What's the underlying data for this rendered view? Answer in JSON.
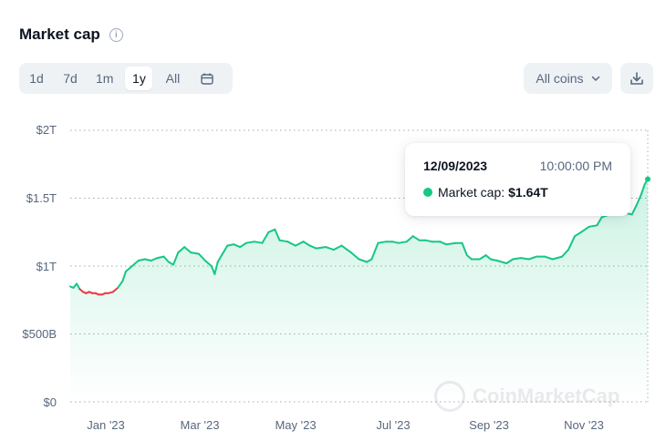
{
  "header": {
    "title": "Market cap",
    "info_icon": "i"
  },
  "range_tabs": [
    {
      "label": "1d",
      "active": false
    },
    {
      "label": "7d",
      "active": false
    },
    {
      "label": "1m",
      "active": false
    },
    {
      "label": "1y",
      "active": true
    },
    {
      "label": "All",
      "active": false
    }
  ],
  "coins_select": {
    "value": "All coins"
  },
  "icons": {
    "calendar": "calendar-icon",
    "chevron": "chevron-down-icon",
    "download": "download-icon",
    "info": "info-icon"
  },
  "colors": {
    "up": "#16c784",
    "down": "#ea3943",
    "grid": "#58667e",
    "text": "#58667e"
  },
  "tooltip": {
    "date": "12/09/2023",
    "time": "10:00:00 PM",
    "label": "Market cap:",
    "value": "$1.64T"
  },
  "watermark": {
    "text": "CoinMarketCap"
  },
  "chart_data": {
    "type": "line",
    "y_ticks": [
      "$2T",
      "$1.5T",
      "$1T",
      "$500B",
      "$0"
    ],
    "y_tick_values": [
      2.0,
      1.5,
      1.0,
      0.5,
      0.0
    ],
    "ylim": [
      0,
      2.0
    ],
    "x_ticks": [
      "Jan '23",
      "Mar '23",
      "May '23",
      "Jul '23",
      "Sep '23",
      "Nov '23"
    ],
    "x_tick_dates": [
      "2023-01-01",
      "2023-03-01",
      "2023-05-01",
      "2023-07-01",
      "2023-09-01",
      "2023-11-01"
    ],
    "xlim": [
      "2022-12-10",
      "2023-12-09"
    ],
    "grid": true,
    "series": [
      {
        "unit": "trillion USD",
        "points": [
          [
            "2022-12-10",
            0.85
          ],
          [
            "2022-12-12",
            0.84
          ],
          [
            "2022-12-14",
            0.87
          ],
          [
            "2022-12-16",
            0.83
          ],
          [
            "2022-12-18",
            0.81
          ],
          [
            "2022-12-20",
            0.8
          ],
          [
            "2022-12-22",
            0.81
          ],
          [
            "2022-12-24",
            0.8
          ],
          [
            "2022-12-26",
            0.8
          ],
          [
            "2022-12-28",
            0.79
          ],
          [
            "2022-12-30",
            0.79
          ],
          [
            "2023-01-01",
            0.8
          ],
          [
            "2023-01-03",
            0.8
          ],
          [
            "2023-01-06",
            0.81
          ],
          [
            "2023-01-09",
            0.84
          ],
          [
            "2023-01-12",
            0.89
          ],
          [
            "2023-01-14",
            0.96
          ],
          [
            "2023-01-18",
            1.0
          ],
          [
            "2023-01-22",
            1.04
          ],
          [
            "2023-01-26",
            1.05
          ],
          [
            "2023-01-30",
            1.04
          ],
          [
            "2023-02-03",
            1.06
          ],
          [
            "2023-02-07",
            1.07
          ],
          [
            "2023-02-10",
            1.03
          ],
          [
            "2023-02-13",
            1.01
          ],
          [
            "2023-02-16",
            1.1
          ],
          [
            "2023-02-20",
            1.14
          ],
          [
            "2023-02-24",
            1.1
          ],
          [
            "2023-03-01",
            1.09
          ],
          [
            "2023-03-05",
            1.04
          ],
          [
            "2023-03-09",
            1.0
          ],
          [
            "2023-03-11",
            0.94
          ],
          [
            "2023-03-13",
            1.03
          ],
          [
            "2023-03-16",
            1.09
          ],
          [
            "2023-03-19",
            1.15
          ],
          [
            "2023-03-23",
            1.16
          ],
          [
            "2023-03-27",
            1.14
          ],
          [
            "2023-03-31",
            1.17
          ],
          [
            "2023-04-05",
            1.18
          ],
          [
            "2023-04-10",
            1.17
          ],
          [
            "2023-04-14",
            1.25
          ],
          [
            "2023-04-18",
            1.27
          ],
          [
            "2023-04-21",
            1.19
          ],
          [
            "2023-04-26",
            1.18
          ],
          [
            "2023-05-01",
            1.15
          ],
          [
            "2023-05-06",
            1.18
          ],
          [
            "2023-05-10",
            1.15
          ],
          [
            "2023-05-14",
            1.13
          ],
          [
            "2023-05-20",
            1.14
          ],
          [
            "2023-05-25",
            1.12
          ],
          [
            "2023-05-30",
            1.15
          ],
          [
            "2023-06-05",
            1.1
          ],
          [
            "2023-06-10",
            1.05
          ],
          [
            "2023-06-15",
            1.03
          ],
          [
            "2023-06-18",
            1.05
          ],
          [
            "2023-06-22",
            1.17
          ],
          [
            "2023-06-27",
            1.18
          ],
          [
            "2023-07-01",
            1.18
          ],
          [
            "2023-07-05",
            1.17
          ],
          [
            "2023-07-10",
            1.18
          ],
          [
            "2023-07-14",
            1.22
          ],
          [
            "2023-07-18",
            1.19
          ],
          [
            "2023-07-22",
            1.19
          ],
          [
            "2023-07-26",
            1.18
          ],
          [
            "2023-07-31",
            1.18
          ],
          [
            "2023-08-04",
            1.16
          ],
          [
            "2023-08-10",
            1.17
          ],
          [
            "2023-08-14",
            1.17
          ],
          [
            "2023-08-17",
            1.08
          ],
          [
            "2023-08-20",
            1.05
          ],
          [
            "2023-08-25",
            1.05
          ],
          [
            "2023-08-29",
            1.08
          ],
          [
            "2023-09-01",
            1.05
          ],
          [
            "2023-09-05",
            1.04
          ],
          [
            "2023-09-11",
            1.02
          ],
          [
            "2023-09-15",
            1.05
          ],
          [
            "2023-09-20",
            1.06
          ],
          [
            "2023-09-25",
            1.05
          ],
          [
            "2023-09-30",
            1.07
          ],
          [
            "2023-10-05",
            1.07
          ],
          [
            "2023-10-10",
            1.05
          ],
          [
            "2023-10-16",
            1.07
          ],
          [
            "2023-10-20",
            1.12
          ],
          [
            "2023-10-24",
            1.22
          ],
          [
            "2023-10-28",
            1.25
          ],
          [
            "2023-11-02",
            1.29
          ],
          [
            "2023-11-07",
            1.3
          ],
          [
            "2023-11-10",
            1.36
          ],
          [
            "2023-11-15",
            1.38
          ],
          [
            "2023-11-20",
            1.38
          ],
          [
            "2023-11-25",
            1.39
          ],
          [
            "2023-11-29",
            1.38
          ],
          [
            "2023-12-02",
            1.45
          ],
          [
            "2023-12-05",
            1.53
          ],
          [
            "2023-12-07",
            1.6
          ],
          [
            "2023-12-09",
            1.64
          ]
        ]
      }
    ]
  }
}
